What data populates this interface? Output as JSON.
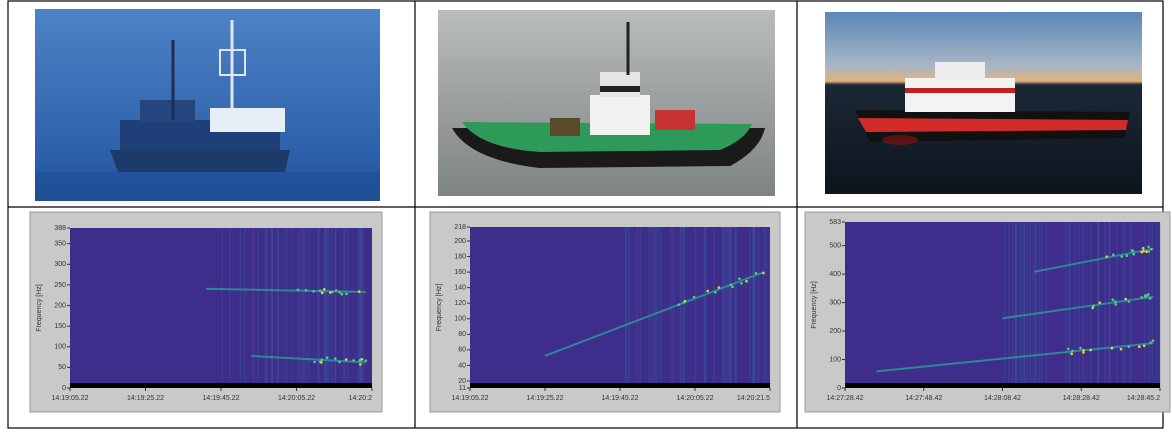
{
  "spectrograms": [
    {
      "y_label": "Frequency [Hz]",
      "y_ticks": [
        388,
        350,
        300,
        250,
        200,
        150,
        100,
        50,
        0
      ],
      "x_ticks": [
        "14:19:05.22",
        "14:19:25.22",
        "14:19:45.22",
        "14:20:05.22",
        "14:20:2"
      ]
    },
    {
      "y_label": "Frequency [Hz]",
      "y_ticks": [
        218,
        200,
        180,
        160,
        140,
        120,
        100,
        80,
        60,
        40,
        20,
        11
      ],
      "x_ticks": [
        "14:19:05.22",
        "14:19:25.22",
        "14:19:45.22",
        "14:20:05.22",
        "14:20:21.5"
      ]
    },
    {
      "y_label": "Frequency [Hz]",
      "y_ticks": [
        583,
        500,
        400,
        300,
        200,
        100,
        0
      ],
      "x_ticks": [
        "14:27:28.42",
        "14:27:48.42",
        "14:28:08.42",
        "14:28:28.42",
        "14:28:45.2"
      ]
    }
  ]
}
